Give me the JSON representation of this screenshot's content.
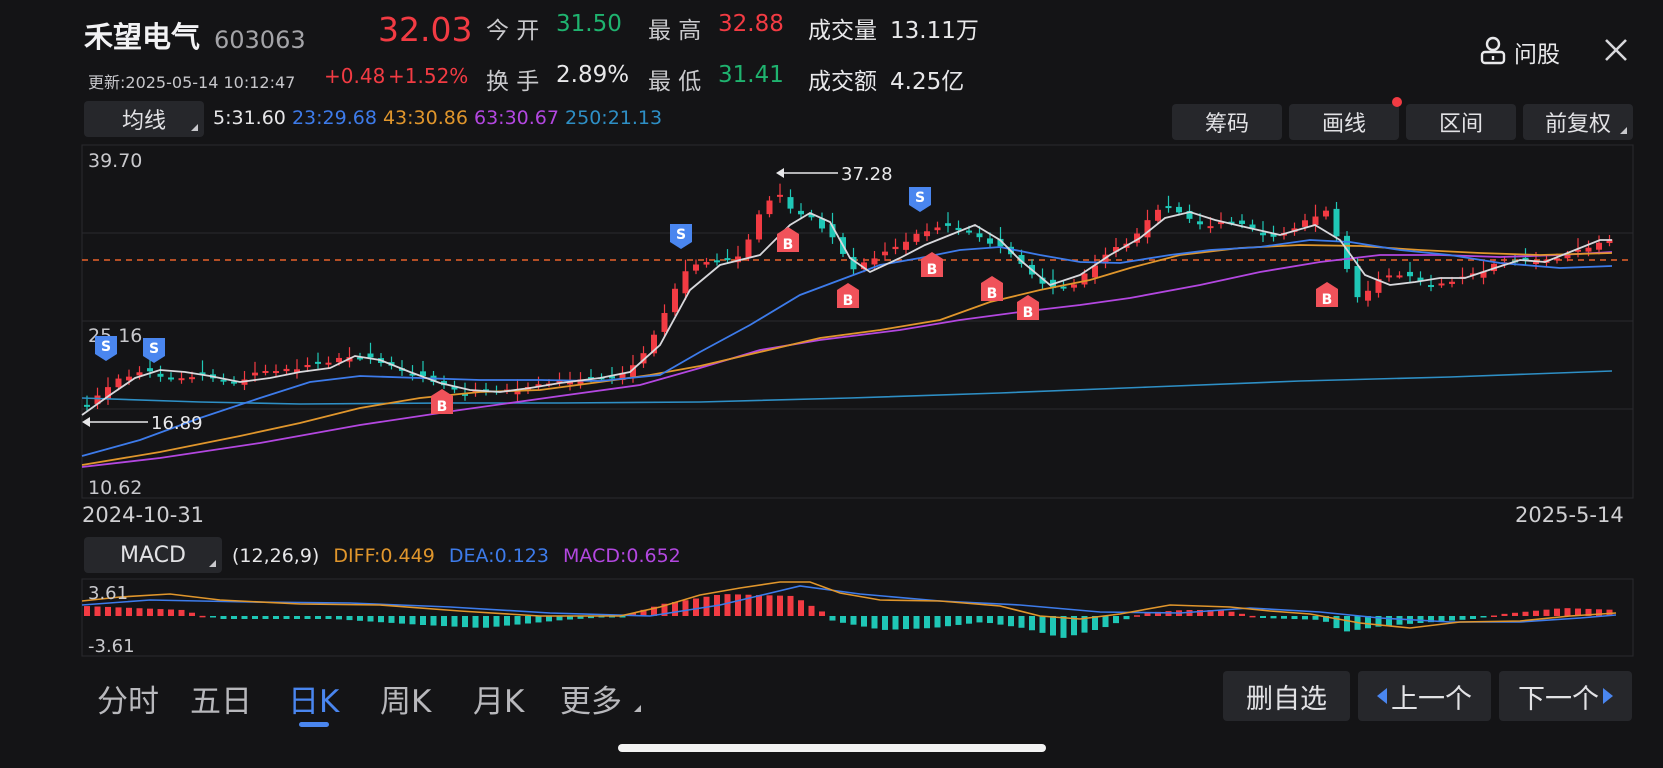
{
  "header": {
    "stock_name": "禾望电气",
    "stock_code": "603063",
    "price": "32.03",
    "change": "+0.48",
    "change_pct": "+1.52%",
    "updated": "更新:2025-05-14 10:12:47",
    "open_label": "今 开",
    "open_value": "31.50",
    "high_label": "最 高",
    "high_value": "32.88",
    "volume_label": "成交量",
    "volume_value": "13.11万",
    "turnover_label": "换 手",
    "turnover_value": "2.89%",
    "low_label": "最 低",
    "low_value": "31.41",
    "amount_label": "成交额",
    "amount_value": "4.25亿",
    "ask_label": "问股"
  },
  "toolbar": {
    "ma_button": "均线",
    "ma5": "5:31.60",
    "ma23": "23:29.68",
    "ma43": "43:30.86",
    "ma63": "63:30.67",
    "ma250": "250:21.13",
    "chips_button": "筹码",
    "draw_button": "画线",
    "range_button": "区间",
    "adjust_button": "前复权"
  },
  "chart": {
    "y_max_label": "39.70",
    "y_mid_label": "25.16",
    "y_min_label": "10.62",
    "high_marker": "37.28",
    "low_marker": "16.89",
    "x_start": "2024-10-31",
    "x_end": "2025-5-14",
    "signal_buy": "B",
    "signal_sell": "S"
  },
  "macd": {
    "button": "MACD",
    "params": "(12,26,9)",
    "diff": "DIFF:0.449",
    "dea": "DEA:0.123",
    "macd": "MACD:0.652",
    "y_top": "3.61",
    "y_bottom": "-3.61"
  },
  "bottom": {
    "tabs": [
      "分时",
      "五日",
      "日K",
      "周K",
      "月K",
      "更多"
    ],
    "remove_button": "删自选",
    "prev_button": "上一个",
    "next_button": "下一个"
  },
  "colors": {
    "up": "#f23b43",
    "down": "#1fc7b6",
    "ma5": "#dcdcdc",
    "ma23": "#3d7bea",
    "ma43": "#e0962c",
    "ma63": "#b347e0",
    "ma250": "#2e8fc5"
  },
  "chart_data": {
    "type": "candlestick",
    "x_range": [
      "2024-10-31",
      "2025-05-14"
    ],
    "ylim": [
      10.62,
      39.7
    ],
    "period_high": 37.28,
    "period_low": 16.89,
    "last_close": 32.03,
    "ma_last": {
      "MA5": 31.6,
      "MA23": 29.68,
      "MA43": 30.86,
      "MA63": 30.67,
      "MA250": 21.13
    },
    "macd": {
      "params": [
        12,
        26,
        9
      ],
      "diff": 0.449,
      "dea": 0.123,
      "macd": 0.652,
      "ylim": [
        -3.61,
        3.61
      ]
    }
  }
}
